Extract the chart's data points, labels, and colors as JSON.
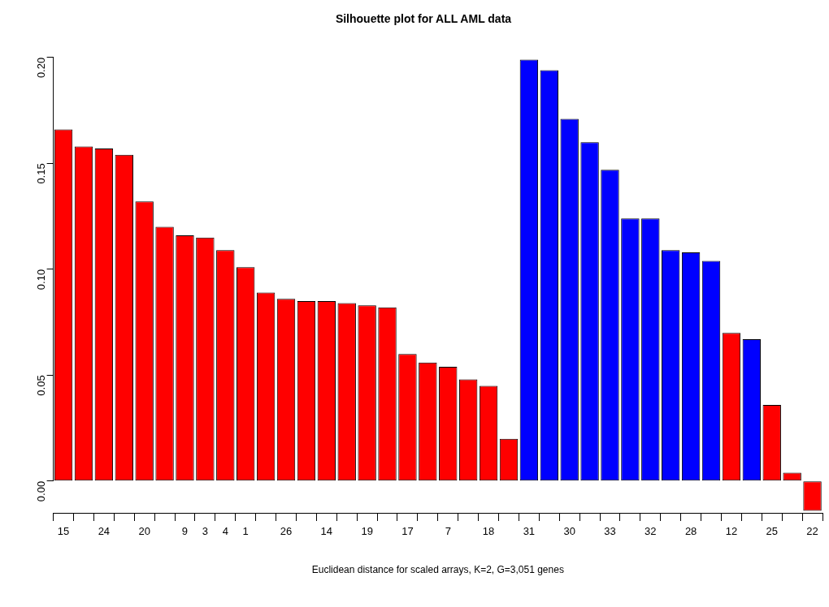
{
  "chart_data": {
    "type": "bar",
    "title": "Silhouette plot for ALL AML data",
    "xlabel": "Euclidean distance for scaled arrays, K=2, G=3,051 genes",
    "categories": [
      "15",
      null,
      "24",
      null,
      "20",
      null,
      "9",
      "3",
      "4",
      "1",
      null,
      "26",
      null,
      "14",
      null,
      "19",
      null,
      "17",
      null,
      "7",
      null,
      "18",
      null,
      "31",
      null,
      "30",
      null,
      "33",
      null,
      "32",
      null,
      "28",
      null,
      "12",
      null,
      "25",
      null,
      "22"
    ],
    "values": [
      0.166,
      0.158,
      0.157,
      0.154,
      0.132,
      0.12,
      0.116,
      0.115,
      0.109,
      0.101,
      0.089,
      0.086,
      0.085,
      0.085,
      0.084,
      0.083,
      0.082,
      0.06,
      0.056,
      0.054,
      0.048,
      0.045,
      0.02,
      0.199,
      0.194,
      0.171,
      0.16,
      0.147,
      0.124,
      0.124,
      0.109,
      0.108,
      0.104,
      0.07,
      0.067,
      0.036,
      0.004,
      -0.014
    ],
    "colors": [
      "#ff0000",
      "#ff0000",
      "#ff0000",
      "#ff0000",
      "#ff0000",
      "#ff0000",
      "#ff0000",
      "#ff0000",
      "#ff0000",
      "#ff0000",
      "#ff0000",
      "#ff0000",
      "#ff0000",
      "#ff0000",
      "#ff0000",
      "#ff0000",
      "#ff0000",
      "#ff0000",
      "#ff0000",
      "#ff0000",
      "#ff0000",
      "#ff0000",
      "#ff0000",
      "#0000ff",
      "#0000ff",
      "#0000ff",
      "#0000ff",
      "#0000ff",
      "#0000ff",
      "#0000ff",
      "#0000ff",
      "#0000ff",
      "#0000ff",
      "#ff0000",
      "#0000ff",
      "#ff0000",
      "#ff0000",
      "#ff0000"
    ],
    "ylim": [
      -0.015,
      0.2
    ],
    "yticks": [
      {
        "value": 0,
        "label": "0.00"
      },
      0.05,
      {
        "value": 0.1,
        "label": "0.10"
      },
      0.15,
      {
        "value": 0.2,
        "label": "0.20"
      }
    ],
    "grid": false,
    "legend": false
  }
}
